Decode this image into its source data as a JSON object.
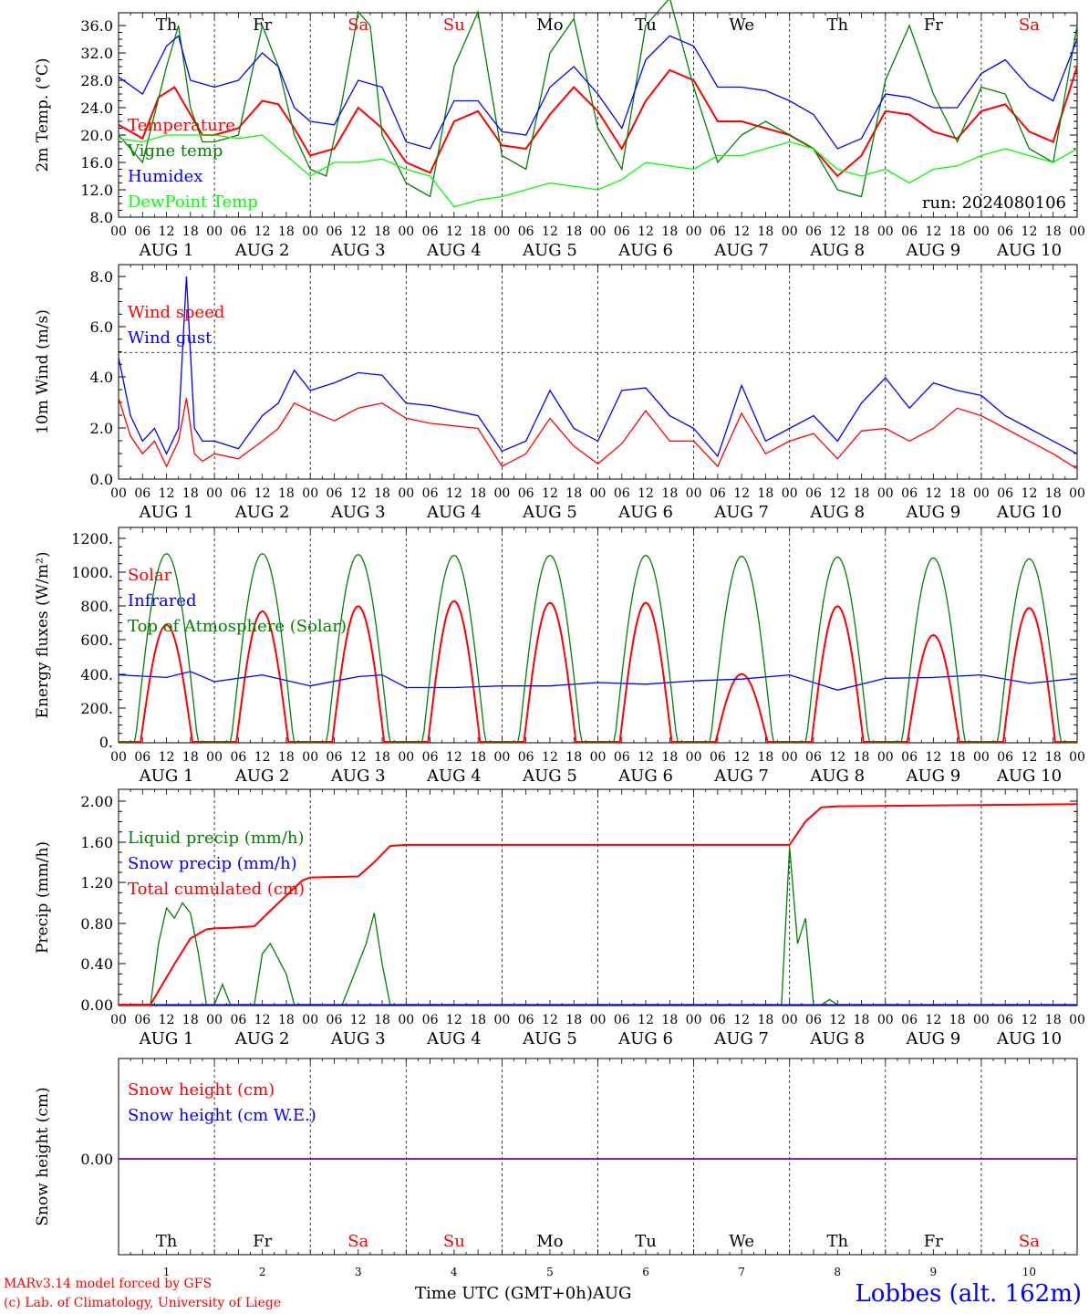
{
  "chart_data": [
    {
      "type": "line",
      "ylabel": "2m Temp. (°C)",
      "ylim": [
        8,
        38
      ],
      "yticks": [
        "36.0",
        "32.0",
        "28.0",
        "24.0",
        "20.0",
        "16.0",
        "12.0",
        "8.0"
      ],
      "day_names": [
        "Th",
        "Fr",
        "Sa",
        "Su",
        "Mo",
        "Tu",
        "We",
        "Th",
        "Fr",
        "Sa"
      ],
      "weekend_days": [
        2,
        3,
        9
      ],
      "annotation": "run: 2024080106",
      "x_unit": "hours since AUG 1 00 UTC",
      "series": [
        {
          "name": "Temperature",
          "color": "#ff0000",
          "x": [
            0,
            6,
            10,
            14,
            18,
            21,
            24,
            30,
            36,
            40,
            44,
            48,
            54,
            60,
            66,
            72,
            78,
            84,
            90,
            96,
            102,
            108,
            114,
            120,
            126,
            132,
            138,
            144,
            150,
            156,
            162,
            168,
            174,
            180,
            186,
            192,
            198,
            204,
            210,
            216,
            222,
            228,
            234,
            240
          ],
          "values": [
            21.5,
            19.5,
            25.5,
            27,
            23,
            20,
            20,
            21,
            25,
            24.5,
            21,
            17,
            18,
            24,
            21,
            16,
            14.5,
            22,
            23.5,
            18.5,
            18,
            23,
            27,
            23.5,
            18,
            25,
            29.5,
            28,
            22,
            22,
            21,
            20,
            18,
            14,
            17,
            23.5,
            23,
            20.5,
            19.5,
            23.5,
            24.5,
            20.5,
            19,
            30
          ]
        },
        {
          "name": "Vigne temp",
          "color": "#008000",
          "x": [
            0,
            6,
            12,
            15,
            18,
            21,
            24,
            30,
            36,
            40,
            44,
            48,
            52,
            56,
            60,
            63,
            66,
            72,
            78,
            84,
            90,
            96,
            102,
            108,
            114,
            120,
            126,
            132,
            138,
            144,
            150,
            156,
            162,
            168,
            174,
            180,
            186,
            192,
            198,
            204,
            210,
            216,
            222,
            228,
            234,
            240
          ],
          "values": [
            20,
            16,
            30,
            36,
            24,
            19,
            19,
            20,
            36,
            30,
            20,
            15,
            14,
            25,
            38,
            36,
            20,
            13,
            11,
            30,
            38,
            17,
            15,
            32,
            37,
            21,
            15,
            36,
            40,
            27,
            16,
            20,
            22,
            20,
            18,
            12,
            11,
            28,
            36,
            26,
            19,
            27,
            26,
            18,
            16,
            36
          ]
        },
        {
          "name": "Humidex",
          "color": "#0000ff",
          "x": [
            0,
            6,
            12,
            15,
            18,
            21,
            24,
            30,
            36,
            40,
            44,
            48,
            54,
            60,
            66,
            72,
            78,
            84,
            90,
            96,
            102,
            108,
            114,
            120,
            126,
            132,
            138,
            144,
            150,
            156,
            162,
            168,
            174,
            180,
            186,
            192,
            198,
            204,
            210,
            216,
            222,
            228,
            234,
            240
          ],
          "values": [
            28.5,
            26,
            33,
            34.5,
            28,
            27.5,
            27,
            28,
            32,
            30,
            24,
            22,
            21.5,
            28,
            27,
            19,
            18,
            25,
            25,
            20.5,
            20,
            27,
            30,
            26,
            21,
            31,
            34.5,
            33,
            27,
            27,
            26.5,
            25,
            23,
            18,
            19.5,
            26,
            25.5,
            24,
            24,
            29,
            31,
            27,
            25,
            34
          ]
        },
        {
          "name": "DewPoint Temp",
          "color": "#00ff00",
          "x": [
            0,
            6,
            12,
            18,
            24,
            30,
            36,
            42,
            48,
            54,
            60,
            66,
            72,
            78,
            84,
            90,
            96,
            102,
            108,
            114,
            120,
            126,
            132,
            138,
            144,
            150,
            156,
            162,
            168,
            174,
            180,
            186,
            192,
            198,
            204,
            210,
            216,
            222,
            228,
            234,
            240
          ],
          "values": [
            19.5,
            19,
            20,
            20,
            20,
            19.5,
            20,
            17,
            14,
            16,
            16,
            16.5,
            15,
            14,
            9.5,
            10.5,
            11,
            12,
            13,
            12.5,
            12,
            13.5,
            16,
            15.5,
            15,
            17,
            17,
            18,
            19,
            18,
            15,
            14,
            15,
            13,
            15,
            15.5,
            17,
            18,
            17,
            16,
            18
          ]
        }
      ]
    },
    {
      "type": "line",
      "ylabel": "10m Wind (m/s)",
      "ylim": [
        0,
        8
      ],
      "yticks": [
        "8.0",
        "6.0",
        "4.0",
        "2.0",
        "0.0"
      ],
      "x_unit": "hours since AUG 1 00 UTC",
      "series": [
        {
          "name": "Wind speed",
          "color": "#ff0000",
          "x": [
            0,
            3,
            6,
            9,
            12,
            15,
            17,
            19,
            21,
            24,
            30,
            36,
            40,
            44,
            48,
            54,
            60,
            66,
            72,
            78,
            84,
            90,
            96,
            102,
            108,
            114,
            120,
            126,
            132,
            138,
            144,
            150,
            156,
            162,
            168,
            174,
            180,
            186,
            192,
            198,
            204,
            210,
            216,
            222,
            228,
            234,
            240
          ],
          "values": [
            3.2,
            1.7,
            1.0,
            1.5,
            0.5,
            1.5,
            3.2,
            1.0,
            0.7,
            1.0,
            0.8,
            1.5,
            2.0,
            3.0,
            2.7,
            2.3,
            2.8,
            3.0,
            2.4,
            2.2,
            2.1,
            2.0,
            0.5,
            1.0,
            2.4,
            1.3,
            0.6,
            1.4,
            2.7,
            1.5,
            1.5,
            0.5,
            2.6,
            1.0,
            1.5,
            1.8,
            0.8,
            1.9,
            2.0,
            1.5,
            2.0,
            2.8,
            2.5,
            2.0,
            1.5,
            1.0,
            0.4
          ]
        },
        {
          "name": "Wind gust",
          "color": "#0000ff",
          "x": [
            0,
            3,
            6,
            9,
            12,
            15,
            17,
            19,
            21,
            24,
            30,
            36,
            40,
            44,
            48,
            54,
            60,
            66,
            72,
            78,
            84,
            90,
            96,
            102,
            108,
            114,
            120,
            126,
            132,
            138,
            144,
            150,
            156,
            162,
            168,
            174,
            180,
            186,
            192,
            198,
            204,
            210,
            216,
            222,
            228,
            234,
            240
          ],
          "values": [
            4.8,
            2.5,
            1.5,
            2.0,
            1.0,
            2.0,
            8.0,
            2.0,
            1.5,
            1.5,
            1.2,
            2.5,
            3.0,
            4.3,
            3.5,
            3.8,
            4.2,
            4.1,
            3.0,
            2.9,
            2.7,
            2.5,
            1.1,
            1.5,
            3.5,
            2.0,
            1.5,
            3.5,
            3.6,
            2.5,
            2.0,
            0.9,
            3.7,
            1.5,
            2.0,
            2.5,
            1.5,
            3.0,
            4.0,
            2.8,
            3.8,
            3.5,
            3.3,
            2.5,
            2.0,
            1.5,
            1.0
          ]
        }
      ],
      "reference_line": 5.0
    },
    {
      "type": "line",
      "ylabel": "Energy fluxes (W/m²)",
      "ylim": [
        0,
        1200
      ],
      "yticks": [
        "1200.",
        "1000.",
        "800.",
        "600.",
        "400.",
        "200.",
        "0."
      ],
      "x_unit": "hours since AUG 1 00 UTC",
      "series": [
        {
          "name": "Solar",
          "color": "#ff0000",
          "daily_peak": [
            690,
            770,
            800,
            830,
            820,
            820,
            400,
            800,
            630,
            790
          ]
        },
        {
          "name": "Infrared",
          "color": "#0000ff",
          "x": [
            0,
            12,
            18,
            24,
            36,
            48,
            60,
            66,
            72,
            84,
            96,
            108,
            120,
            132,
            144,
            156,
            168,
            180,
            192,
            204,
            216,
            228,
            240
          ],
          "values": [
            395,
            380,
            415,
            355,
            395,
            330,
            385,
            395,
            320,
            320,
            330,
            330,
            350,
            340,
            360,
            370,
            395,
            305,
            375,
            380,
            395,
            345,
            375
          ]
        },
        {
          "name": "Top of Atmosphere (Solar)",
          "color": "#008000",
          "daily_peak": [
            1110,
            1110,
            1105,
            1100,
            1100,
            1100,
            1095,
            1090,
            1085,
            1080
          ]
        }
      ]
    },
    {
      "type": "line",
      "ylabel": "Precip (mm/h)",
      "ylim": [
        0,
        2
      ],
      "yticks": [
        "2.00",
        "1.60",
        "1.20",
        "0.80",
        "0.40",
        "0.00"
      ],
      "x_unit": "hours since AUG 1 00 UTC",
      "series": [
        {
          "name": "Liquid precip (mm/h)",
          "color": "#008000",
          "x": [
            0,
            8,
            10,
            12,
            14,
            16,
            18,
            20,
            22,
            24,
            26,
            28,
            30,
            34,
            36,
            38,
            40,
            42,
            44,
            46,
            48,
            56,
            58,
            60,
            62,
            64,
            66,
            68,
            70,
            72,
            162,
            166,
            168,
            170,
            172,
            174,
            176,
            178,
            180,
            240
          ],
          "values": [
            0,
            0,
            0.6,
            0.95,
            0.85,
            1.0,
            0.9,
            0.5,
            0,
            0,
            0.2,
            0,
            0,
            0,
            0.5,
            0.6,
            0.45,
            0.3,
            0,
            0,
            0,
            0,
            0.2,
            0.4,
            0.6,
            0.9,
            0.4,
            0,
            0,
            0,
            0,
            0,
            1.55,
            0.6,
            0.85,
            0,
            0,
            0.05,
            0,
            0
          ]
        },
        {
          "name": "Snow precip (mm/h)",
          "color": "#0000ff",
          "x": [
            0,
            240
          ],
          "values": [
            0,
            0
          ]
        },
        {
          "name": "Total cumulated (cm)",
          "color": "#ff0000",
          "x": [
            0,
            8,
            14,
            18,
            22,
            24,
            30,
            34,
            40,
            46,
            48,
            60,
            64,
            68,
            72,
            168,
            172,
            176,
            180,
            240
          ],
          "values": [
            0,
            0,
            0.4,
            0.65,
            0.74,
            0.75,
            0.76,
            0.77,
            1.0,
            1.22,
            1.25,
            1.26,
            1.4,
            1.56,
            1.57,
            1.57,
            1.8,
            1.94,
            1.95,
            1.97
          ]
        }
      ]
    },
    {
      "type": "line",
      "ylabel": "Snow height (cm)",
      "yticks": [
        "0.00"
      ],
      "series": [
        {
          "name": "Snow height (cm)",
          "color": "#ff0000",
          "x": [
            0,
            240
          ],
          "values": [
            0,
            0
          ]
        },
        {
          "name": "Snow height (cm W.E.)",
          "color": "#0000ff",
          "x": [
            0,
            240
          ],
          "values": [
            0,
            0
          ]
        }
      ],
      "day_names": [
        "Th",
        "Fr",
        "Sa",
        "Su",
        "Mo",
        "Tu",
        "We",
        "Th",
        "Fr",
        "Sa"
      ],
      "weekend_days": [
        2,
        3,
        9
      ],
      "day_numbers": [
        "1",
        "2",
        "3",
        "4",
        "5",
        "6",
        "7",
        "8",
        "9",
        "10"
      ]
    }
  ],
  "x_axis": {
    "hour_labels": [
      "00",
      "06",
      "12",
      "18"
    ],
    "final_hour_label": "00",
    "date_labels": [
      "AUG  1",
      "AUG  2",
      "AUG  3",
      "AUG  4",
      "AUG  5",
      "AUG  6",
      "AUG  7",
      "AUG  8",
      "AUG  9",
      "AUG 10"
    ],
    "title": "Time UTC (GMT+0h)AUG"
  },
  "footer": {
    "model_credit": "MARv3.14 model forced by GFS",
    "copyright": "(c) Lab. of Climatology, University of Liege",
    "station": "Lobbes (alt. 162m)"
  },
  "colors": {
    "weekday": "#000000",
    "weekend": "#ff0000"
  }
}
